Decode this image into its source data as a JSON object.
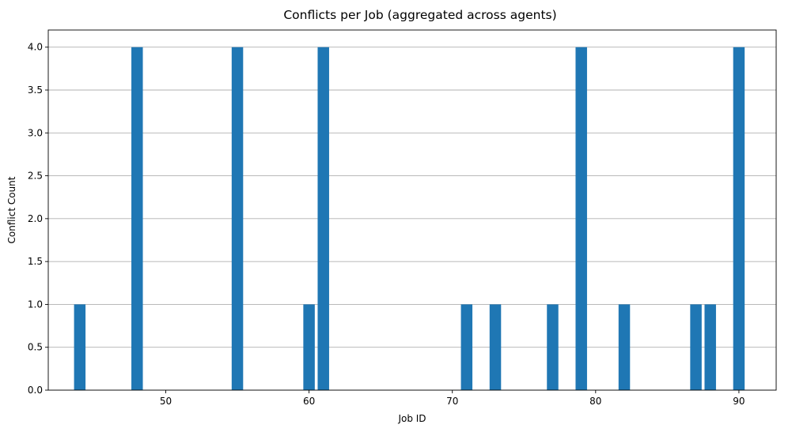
{
  "chart_data": {
    "type": "bar",
    "title": "Conflicts per Job (aggregated across agents)",
    "xlabel": "Job ID",
    "ylabel": "Conflict Count",
    "x": [
      44,
      48,
      55,
      60,
      61,
      71,
      73,
      77,
      79,
      82,
      87,
      88,
      90
    ],
    "values": [
      1,
      4,
      4,
      1,
      4,
      1,
      1,
      1,
      4,
      1,
      1,
      1,
      4
    ],
    "xlim": [
      41.8,
      92.6
    ],
    "ylim": [
      0,
      4.2
    ],
    "xticks": [
      50,
      60,
      70,
      80,
      90
    ],
    "xtick_labels": [
      "50",
      "60",
      "70",
      "80",
      "90"
    ],
    "yticks": [
      0,
      0.5,
      1,
      1.5,
      2,
      2.5,
      3,
      3.5,
      4
    ],
    "ytick_labels": [
      "0.0",
      "0.5",
      "1.0",
      "1.5",
      "2.0",
      "2.5",
      "3.0",
      "3.5",
      "4.0"
    ],
    "bar_width": 0.8,
    "grid": "y-axis only",
    "colors": {
      "bar": "#1f77b4"
    }
  }
}
